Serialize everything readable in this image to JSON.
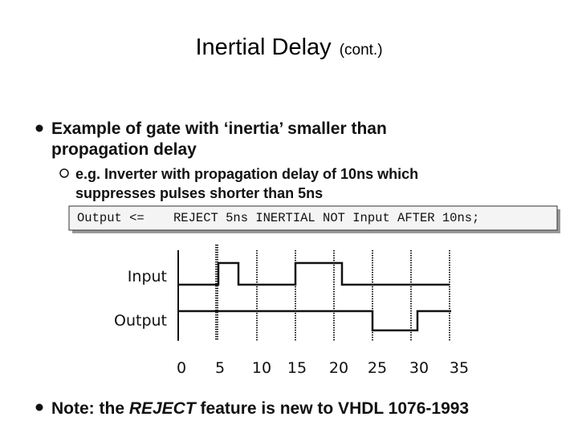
{
  "title": "Inertial Delay",
  "title_suffix": "(cont.)",
  "bullets": [
    {
      "text_lines": [
        "Example of gate with ‘inertia’ smaller than",
        "propagation delay"
      ],
      "sub_bullet": {
        "text_lines": [
          "e.g. Inverter with propagation delay of 10ns which",
          "suppresses pulses shorter than 5ns"
        ]
      }
    }
  ],
  "code": {
    "left": "Output <=",
    "right": "REJECT 5ns INERTIAL NOT Input AFTER 10ns;"
  },
  "diagram": {
    "signals": [
      "Input",
      "Output"
    ],
    "time_labels": [
      0,
      5,
      10,
      15,
      20,
      25,
      30,
      35
    ]
  },
  "note": {
    "before": "Note: the ",
    "emphasis": "REJECT",
    "after": " feature is new to VHDL 1076-1993"
  }
}
